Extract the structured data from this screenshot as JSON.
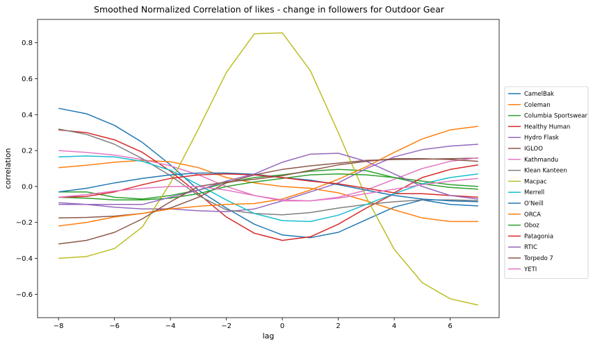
{
  "chart_data": {
    "type": "line",
    "title": "Smoothed Normalized Correlation of likes - change in followers for Outdoor Gear",
    "xlabel": "lag",
    "ylabel": "correlation",
    "xlim": [
      -8.75,
      7.75
    ],
    "ylim": [
      -0.73,
      0.93
    ],
    "xticks": [
      -8,
      -6,
      -4,
      -2,
      0,
      2,
      4,
      6
    ],
    "yticks": [
      -0.6,
      -0.4,
      -0.2,
      0.0,
      0.2,
      0.4,
      0.6,
      0.8
    ],
    "grid": false,
    "legend_position": "right",
    "x": [
      -8,
      -7,
      -6,
      -5,
      -4,
      -3,
      -2,
      -1,
      0,
      1,
      2,
      3,
      4,
      5,
      6,
      7
    ],
    "series": [
      {
        "name": "CamelBak",
        "color": "#1f77b4",
        "values": [
          0.435,
          0.405,
          0.34,
          0.245,
          0.12,
          -0.02,
          -0.12,
          -0.21,
          -0.27,
          -0.285,
          -0.255,
          -0.185,
          -0.115,
          -0.075,
          -0.1,
          -0.108
        ]
      },
      {
        "name": "Coleman",
        "color": "#ff7f0e",
        "values": [
          0.105,
          0.118,
          0.135,
          0.145,
          0.138,
          0.105,
          0.05,
          0.02,
          0.0,
          -0.01,
          -0.035,
          -0.08,
          -0.13,
          -0.175,
          -0.195,
          -0.195
        ]
      },
      {
        "name": "Columbia Sportswear",
        "color": "#2ca02c",
        "values": [
          -0.03,
          -0.03,
          -0.06,
          -0.07,
          -0.05,
          -0.02,
          0.02,
          0.05,
          0.065,
          0.085,
          0.095,
          0.088,
          0.05,
          0.015,
          -0.005,
          -0.015
        ]
      },
      {
        "name": "Healthy Human",
        "color": "#d62728",
        "values": [
          0.315,
          0.3,
          0.26,
          0.19,
          0.085,
          -0.04,
          -0.17,
          -0.26,
          -0.3,
          -0.28,
          -0.21,
          -0.12,
          -0.04,
          -0.04,
          -0.05,
          -0.06
        ]
      },
      {
        "name": "Hydro Flask",
        "color": "#9467bd",
        "values": [
          -0.09,
          -0.1,
          -0.115,
          -0.125,
          -0.125,
          -0.135,
          -0.14,
          -0.125,
          -0.08,
          -0.03,
          0.02,
          0.1,
          0.165,
          0.205,
          0.225,
          0.235
        ]
      },
      {
        "name": "IGLOO",
        "color": "#8c564b",
        "values": [
          -0.175,
          -0.172,
          -0.165,
          -0.15,
          -0.12,
          -0.06,
          0.02,
          0.065,
          0.095,
          0.115,
          0.13,
          0.145,
          0.15,
          0.152,
          0.155,
          0.158
        ]
      },
      {
        "name": "Kathmandu",
        "color": "#e377c2",
        "values": [
          0.2,
          0.19,
          0.175,
          0.15,
          0.115,
          0.065,
          0.0,
          -0.05,
          -0.08,
          -0.08,
          -0.06,
          -0.02,
          0.04,
          0.1,
          0.14,
          0.16
        ]
      },
      {
        "name": "Klean Kanteen",
        "color": "#7f7f7f",
        "values": [
          0.32,
          0.29,
          0.235,
          0.155,
          0.06,
          -0.05,
          -0.13,
          -0.15,
          -0.158,
          -0.145,
          -0.12,
          -0.1,
          -0.085,
          -0.075,
          -0.075,
          -0.078
        ]
      },
      {
        "name": "Macpac",
        "color": "#bcbd22",
        "values": [
          -0.4,
          -0.39,
          -0.345,
          -0.225,
          0.02,
          0.32,
          0.635,
          0.85,
          0.855,
          0.645,
          0.3,
          -0.06,
          -0.35,
          -0.535,
          -0.625,
          -0.66
        ]
      },
      {
        "name": "Merrell",
        "color": "#17becf",
        "values": [
          0.165,
          0.17,
          0.165,
          0.14,
          0.09,
          0.01,
          -0.075,
          -0.15,
          -0.19,
          -0.195,
          -0.16,
          -0.1,
          -0.04,
          0.015,
          0.05,
          0.07
        ]
      },
      {
        "name": "O'Neill",
        "color": "#1f77b4",
        "values": [
          -0.03,
          -0.01,
          0.02,
          0.045,
          0.065,
          0.075,
          0.075,
          0.068,
          0.05,
          0.035,
          0.01,
          -0.02,
          -0.05,
          -0.07,
          -0.08,
          -0.085
        ]
      },
      {
        "name": "ORCA",
        "color": "#ff7f0e",
        "values": [
          -0.22,
          -0.2,
          -0.17,
          -0.15,
          -0.125,
          -0.11,
          -0.1,
          -0.095,
          -0.07,
          -0.02,
          0.04,
          0.11,
          0.19,
          0.265,
          0.315,
          0.335
        ]
      },
      {
        "name": "Oboz",
        "color": "#2ca02c",
        "values": [
          -0.06,
          -0.065,
          -0.075,
          -0.075,
          -0.065,
          -0.04,
          0.0,
          0.025,
          0.045,
          0.065,
          0.07,
          0.065,
          0.05,
          0.03,
          0.01,
          0.0
        ]
      },
      {
        "name": "Patagonia",
        "color": "#d62728",
        "values": [
          -0.06,
          -0.055,
          -0.03,
          0.01,
          0.045,
          0.065,
          0.07,
          0.065,
          0.05,
          0.03,
          0.015,
          -0.01,
          -0.035,
          0.05,
          0.095,
          0.12
        ]
      },
      {
        "name": "RTIC",
        "color": "#9467bd",
        "values": [
          -0.1,
          -0.1,
          -0.1,
          -0.1,
          -0.06,
          -0.02,
          0.03,
          0.07,
          0.135,
          0.18,
          0.185,
          0.14,
          0.07,
          0.0,
          -0.05,
          -0.07
        ]
      },
      {
        "name": "Torpedo 7",
        "color": "#8c564b",
        "values": [
          -0.32,
          -0.3,
          -0.255,
          -0.18,
          -0.085,
          0.0,
          0.025,
          0.04,
          0.06,
          0.09,
          0.12,
          0.14,
          0.155,
          0.155,
          0.15,
          0.14
        ]
      },
      {
        "name": "YETI",
        "color": "#e377c2",
        "values": [
          -0.06,
          -0.045,
          -0.025,
          -0.01,
          0.0,
          0.0,
          -0.02,
          -0.05,
          -0.075,
          -0.08,
          -0.065,
          -0.04,
          -0.015,
          0.01,
          0.03,
          0.045
        ]
      }
    ]
  }
}
